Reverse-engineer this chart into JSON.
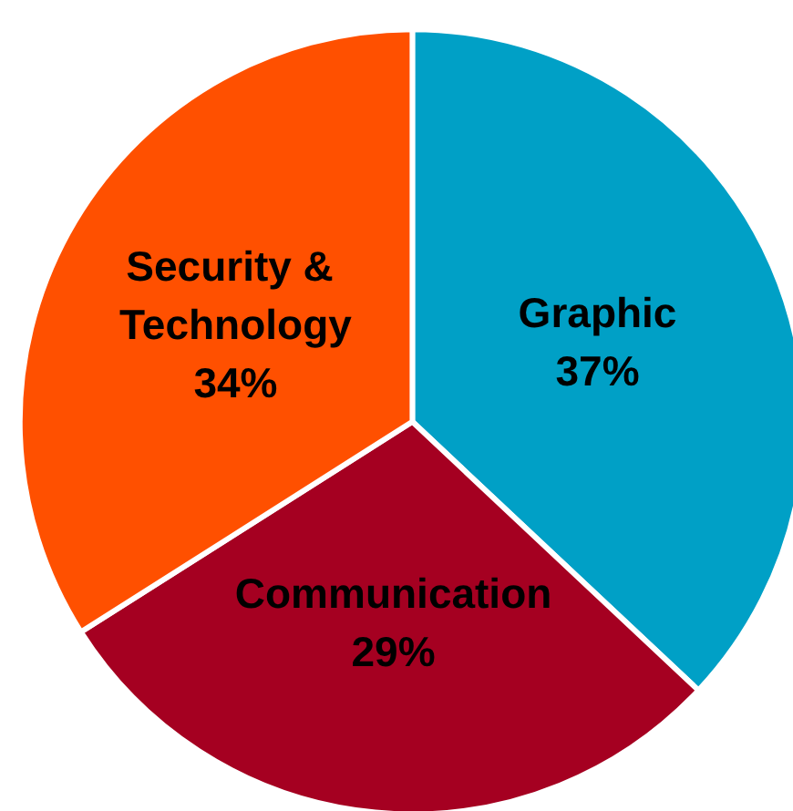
{
  "chart_data": {
    "type": "pie",
    "categories": [
      "Graphic",
      "Communication",
      "Security & Technology"
    ],
    "values": [
      37,
      29,
      34
    ],
    "value_labels": [
      "37%",
      "29%",
      "34%"
    ],
    "colors": [
      "#00a0c6",
      "#a50021",
      "#ff5000"
    ]
  }
}
